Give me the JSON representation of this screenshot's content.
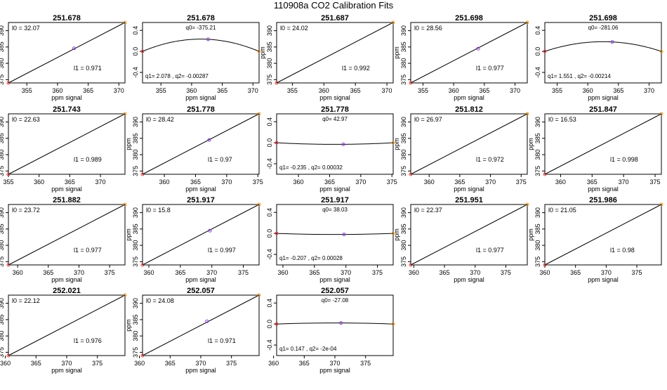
{
  "page": {
    "title": "110908a   CO2 Calibration Fits"
  },
  "chart_data": [
    {
      "type": "scatter",
      "kind": "linear",
      "title": "251.678",
      "xlabel": "ppm signal",
      "ylabel": "ppm",
      "xlim": [
        352,
        371
      ],
      "ylim": [
        374,
        392.5
      ],
      "xticks": [
        355,
        360,
        365,
        370
      ],
      "yticks": [
        375,
        380,
        385,
        390
      ],
      "x": [
        352.0,
        362.7,
        371.0
      ],
      "y": [
        374.0,
        384.6,
        392.5
      ],
      "fit": {
        "l0": 32.07,
        "l1": 0.971
      },
      "labels": {
        "l0": "l0 =  32.07",
        "l1": "l1 =  0.971"
      }
    },
    {
      "type": "scatter",
      "kind": "residual",
      "title": "251.678",
      "xlabel": "ppm signal",
      "ylabel": "",
      "xlim": [
        352,
        371
      ],
      "ylim": [
        -0.6,
        0.55
      ],
      "xticks": [
        355,
        360,
        365,
        370
      ],
      "yticks": [
        0.4,
        0.0,
        -0.4
      ],
      "x": [
        352.0,
        362.7,
        371.0
      ],
      "y": [
        0.0,
        0.23,
        0.0
      ],
      "fit": {
        "q0": -375.21,
        "q1": 2.078,
        "q2": -0.00287
      },
      "labels": {
        "q0": "q0= -375.21",
        "q": "q1= 2.078 , q2= -0.00287"
      }
    },
    {
      "type": "scatter",
      "kind": "linear",
      "title": "251.687",
      "xlabel": "ppm signal",
      "ylabel": "ppm",
      "xlim": [
        352.5,
        371
      ],
      "ylim": [
        374,
        392.5
      ],
      "xticks": [
        355,
        360,
        365,
        370
      ],
      "yticks": [
        375,
        380,
        385,
        390
      ],
      "x": [
        352.5,
        371.0
      ],
      "y": [
        374.0,
        392.5
      ],
      "fit": {
        "l0": 24.02,
        "l1": 0.992
      },
      "labels": {
        "l0": "l0 =  24.02",
        "l1": "l1 =  0.992"
      }
    },
    {
      "type": "scatter",
      "kind": "linear",
      "title": "251.698",
      "xlabel": "ppm signal",
      "ylabel": "ppm",
      "xlim": [
        353,
        372
      ],
      "ylim": [
        374,
        392.5
      ],
      "xticks": [
        355,
        360,
        365,
        370
      ],
      "yticks": [
        375,
        380,
        385,
        390
      ],
      "x": [
        353.0,
        364.0,
        372.0
      ],
      "y": [
        374.0,
        384.5,
        392.5
      ],
      "fit": {
        "l0": 28.56,
        "l1": 0.977
      },
      "labels": {
        "l0": "l0 =  28.56",
        "l1": "l1 =  0.977"
      }
    },
    {
      "type": "scatter",
      "kind": "residual",
      "title": "251.698",
      "xlabel": "ppm signal",
      "ylabel": "",
      "xlim": [
        353,
        372
      ],
      "ylim": [
        -0.6,
        0.55
      ],
      "xticks": [
        355,
        360,
        365,
        370
      ],
      "yticks": [
        0.4,
        0.0,
        -0.4
      ],
      "x": [
        353.0,
        364.0,
        372.0
      ],
      "y": [
        0.0,
        0.18,
        0.0
      ],
      "fit": {
        "q0": -281.06,
        "q1": 1.551,
        "q2": -0.00214
      },
      "labels": {
        "q0": "q0= -281.06",
        "q": "q1= 1.551 , q2= -0.00214"
      }
    },
    {
      "type": "scatter",
      "kind": "linear",
      "title": "251.743",
      "xlabel": "ppm signal",
      "ylabel": "ppm",
      "xlim": [
        355,
        374
      ],
      "ylim": [
        374,
        392.5
      ],
      "xticks": [
        355,
        360,
        365,
        370
      ],
      "yticks": [
        375,
        380,
        385,
        390
      ],
      "x": [
        355.0,
        374.0
      ],
      "y": [
        374.0,
        392.5
      ],
      "fit": {
        "l0": 22.63,
        "l1": 0.989
      },
      "labels": {
        "l0": "l0 =  22.63",
        "l1": "l1 =  0.989"
      }
    },
    {
      "type": "scatter",
      "kind": "linear",
      "title": "251.778",
      "xlabel": "ppm signal",
      "ylabel": "ppm",
      "xlim": [
        356.5,
        375.2
      ],
      "ylim": [
        374,
        392.5
      ],
      "xticks": [
        360,
        365,
        370,
        375
      ],
      "yticks": [
        375,
        380,
        385,
        390
      ],
      "x": [
        356.5,
        367.2,
        375.2
      ],
      "y": [
        374.0,
        384.5,
        392.5
      ],
      "fit": {
        "l0": 28.42,
        "l1": 0.97
      },
      "labels": {
        "l0": "l0 =  28.42",
        "l1": "l1 =  0.97"
      }
    },
    {
      "type": "scatter",
      "kind": "residual",
      "title": "251.778",
      "xlabel": "ppm signal",
      "ylabel": "",
      "xlim": [
        356.5,
        375.2
      ],
      "ylim": [
        -0.6,
        0.55
      ],
      "xticks": [
        360,
        365,
        370,
        375
      ],
      "yticks": [
        0.4,
        0.0,
        -0.4
      ],
      "x": [
        356.5,
        367.2,
        375.2
      ],
      "y": [
        0.0,
        -0.03,
        0.0
      ],
      "fit": {
        "q0": 42.97,
        "q1": -0.235,
        "q2": 0.00032
      },
      "labels": {
        "q0": "q0= 42.97",
        "q": "q1= -0.235 , q2= 0.00032"
      }
    },
    {
      "type": "scatter",
      "kind": "linear",
      "title": "251.812",
      "xlabel": "ppm signal",
      "ylabel": "ppm",
      "xlim": [
        357,
        376
      ],
      "ylim": [
        374,
        392.5
      ],
      "xticks": [
        360,
        365,
        370,
        375
      ],
      "yticks": [
        375,
        380,
        385,
        390
      ],
      "x": [
        357.0,
        376.0
      ],
      "y": [
        374.0,
        392.5
      ],
      "fit": {
        "l0": 26.97,
        "l1": 0.972
      },
      "labels": {
        "l0": "l0 =  26.97",
        "l1": "l1 =  0.972"
      }
    },
    {
      "type": "scatter",
      "kind": "linear",
      "title": "251.847",
      "xlabel": "ppm signal",
      "ylabel": "ppm",
      "xlim": [
        357.5,
        376
      ],
      "ylim": [
        374,
        392.5
      ],
      "xticks": [
        360,
        365,
        370,
        375
      ],
      "yticks": [
        375,
        380,
        385,
        390
      ],
      "x": [
        357.5,
        376.0
      ],
      "y": [
        374.0,
        392.5
      ],
      "fit": {
        "l0": 16.53,
        "l1": 0.998
      },
      "labels": {
        "l0": "l0 =  16.53",
        "l1": "l1 =  0.998"
      }
    },
    {
      "type": "scatter",
      "kind": "linear",
      "title": "251.882",
      "xlabel": "ppm signal",
      "ylabel": "ppm",
      "xlim": [
        358.5,
        377.5
      ],
      "ylim": [
        374,
        392.5
      ],
      "xticks": [
        360,
        365,
        370,
        375
      ],
      "yticks": [
        375,
        380,
        385,
        390
      ],
      "x": [
        358.5,
        377.5
      ],
      "y": [
        374.0,
        392.5
      ],
      "fit": {
        "l0": 23.72,
        "l1": 0.977
      },
      "labels": {
        "l0": "l0 =  23.72",
        "l1": "l1 =  0.977"
      }
    },
    {
      "type": "scatter",
      "kind": "linear",
      "title": "251.917",
      "xlabel": "ppm signal",
      "ylabel": "ppm",
      "xlim": [
        359,
        377.5
      ],
      "ylim": [
        374,
        392.5
      ],
      "xticks": [
        360,
        365,
        370,
        375
      ],
      "yticks": [
        375,
        380,
        385,
        390
      ],
      "x": [
        359.0,
        369.7,
        377.5
      ],
      "y": [
        374.0,
        384.5,
        392.5
      ],
      "fit": {
        "l0": 15.8,
        "l1": 0.997
      },
      "labels": {
        "l0": "l0 =  15.8",
        "l1": "l1 =  0.997"
      }
    },
    {
      "type": "scatter",
      "kind": "residual",
      "title": "251.917",
      "xlabel": "ppm signal",
      "ylabel": "",
      "xlim": [
        359,
        377.5
      ],
      "ylim": [
        -0.6,
        0.55
      ],
      "xticks": [
        360,
        365,
        370,
        375
      ],
      "yticks": [
        0.4,
        0.0,
        -0.4
      ],
      "x": [
        359.0,
        369.7,
        377.5
      ],
      "y": [
        0.0,
        -0.02,
        0.0
      ],
      "fit": {
        "q0": 38.03,
        "q1": -0.207,
        "q2": 0.00028
      },
      "labels": {
        "q0": "q0= 38.03",
        "q": "q1= -0.207 , q2= 0.00028"
      }
    },
    {
      "type": "scatter",
      "kind": "linear",
      "title": "251.951",
      "xlabel": "ppm signal",
      "ylabel": "ppm",
      "xlim": [
        359.5,
        378.5
      ],
      "ylim": [
        374,
        392.5
      ],
      "xticks": [
        360,
        365,
        370,
        375
      ],
      "yticks": [
        375,
        380,
        385,
        390
      ],
      "x": [
        359.5,
        378.5
      ],
      "y": [
        374.0,
        392.5
      ],
      "fit": {
        "l0": 22.37,
        "l1": 0.977
      },
      "labels": {
        "l0": "l0 =  22.37",
        "l1": "l1 =  0.977"
      }
    },
    {
      "type": "scatter",
      "kind": "linear",
      "title": "251.986",
      "xlabel": "ppm signal",
      "ylabel": "ppm",
      "xlim": [
        360,
        379
      ],
      "ylim": [
        374,
        392.5
      ],
      "xticks": [
        360,
        365,
        370,
        375
      ],
      "yticks": [
        375,
        380,
        385,
        390
      ],
      "x": [
        360.0,
        379.0
      ],
      "y": [
        374.0,
        392.5
      ],
      "fit": {
        "l0": 21.05,
        "l1": 0.98
      },
      "labels": {
        "l0": "l0 =  21.05",
        "l1": "l1 =  0.98"
      }
    },
    {
      "type": "scatter",
      "kind": "linear",
      "title": "252.021",
      "xlabel": "ppm signal",
      "ylabel": "ppm",
      "xlim": [
        360.5,
        379.5
      ],
      "ylim": [
        374,
        392.5
      ],
      "xticks": [
        360,
        365,
        370,
        375
      ],
      "yticks": [
        375,
        380,
        385,
        390
      ],
      "x": [
        360.5,
        379.5
      ],
      "y": [
        374.0,
        392.5
      ],
      "fit": {
        "l0": 22.12,
        "l1": 0.976
      },
      "labels": {
        "l0": "l0 =  22.12",
        "l1": "l1 =  0.976"
      }
    },
    {
      "type": "scatter",
      "kind": "linear",
      "title": "252.057",
      "xlabel": "ppm signal",
      "ylabel": "ppm",
      "xlim": [
        360.5,
        379.5
      ],
      "ylim": [
        374,
        392.5
      ],
      "xticks": [
        360,
        365,
        370,
        375
      ],
      "yticks": [
        375,
        380,
        385,
        390
      ],
      "x": [
        360.5,
        371.0,
        379.5
      ],
      "y": [
        374.0,
        384.5,
        392.5
      ],
      "fit": {
        "l0": 24.08,
        "l1": 0.971
      },
      "labels": {
        "l0": "l0 =  24.08",
        "l1": "l1 =  0.971"
      }
    },
    {
      "type": "scatter",
      "kind": "residual",
      "title": "252.057",
      "xlabel": "ppm signal",
      "ylabel": "",
      "xlim": [
        360.5,
        379.5
      ],
      "ylim": [
        -0.6,
        0.55
      ],
      "xticks": [
        360,
        365,
        370,
        375
      ],
      "yticks": [
        0.4,
        0.0,
        -0.4
      ],
      "x": [
        360.5,
        371.0,
        379.5
      ],
      "y": [
        0.0,
        0.02,
        0.0
      ],
      "fit": {
        "q0": -27.08,
        "q1": 0.147,
        "q2": -0.0002
      },
      "labels": {
        "q0": "q0= -27.08",
        "q": "q1= 0.147 , q2= -2e-04"
      }
    }
  ],
  "colors": {
    "low_point": "#e8413c",
    "mid_point": "#8a3fd1",
    "high_point": "#e89a1f",
    "line": "#000000",
    "frame": "#000000"
  }
}
